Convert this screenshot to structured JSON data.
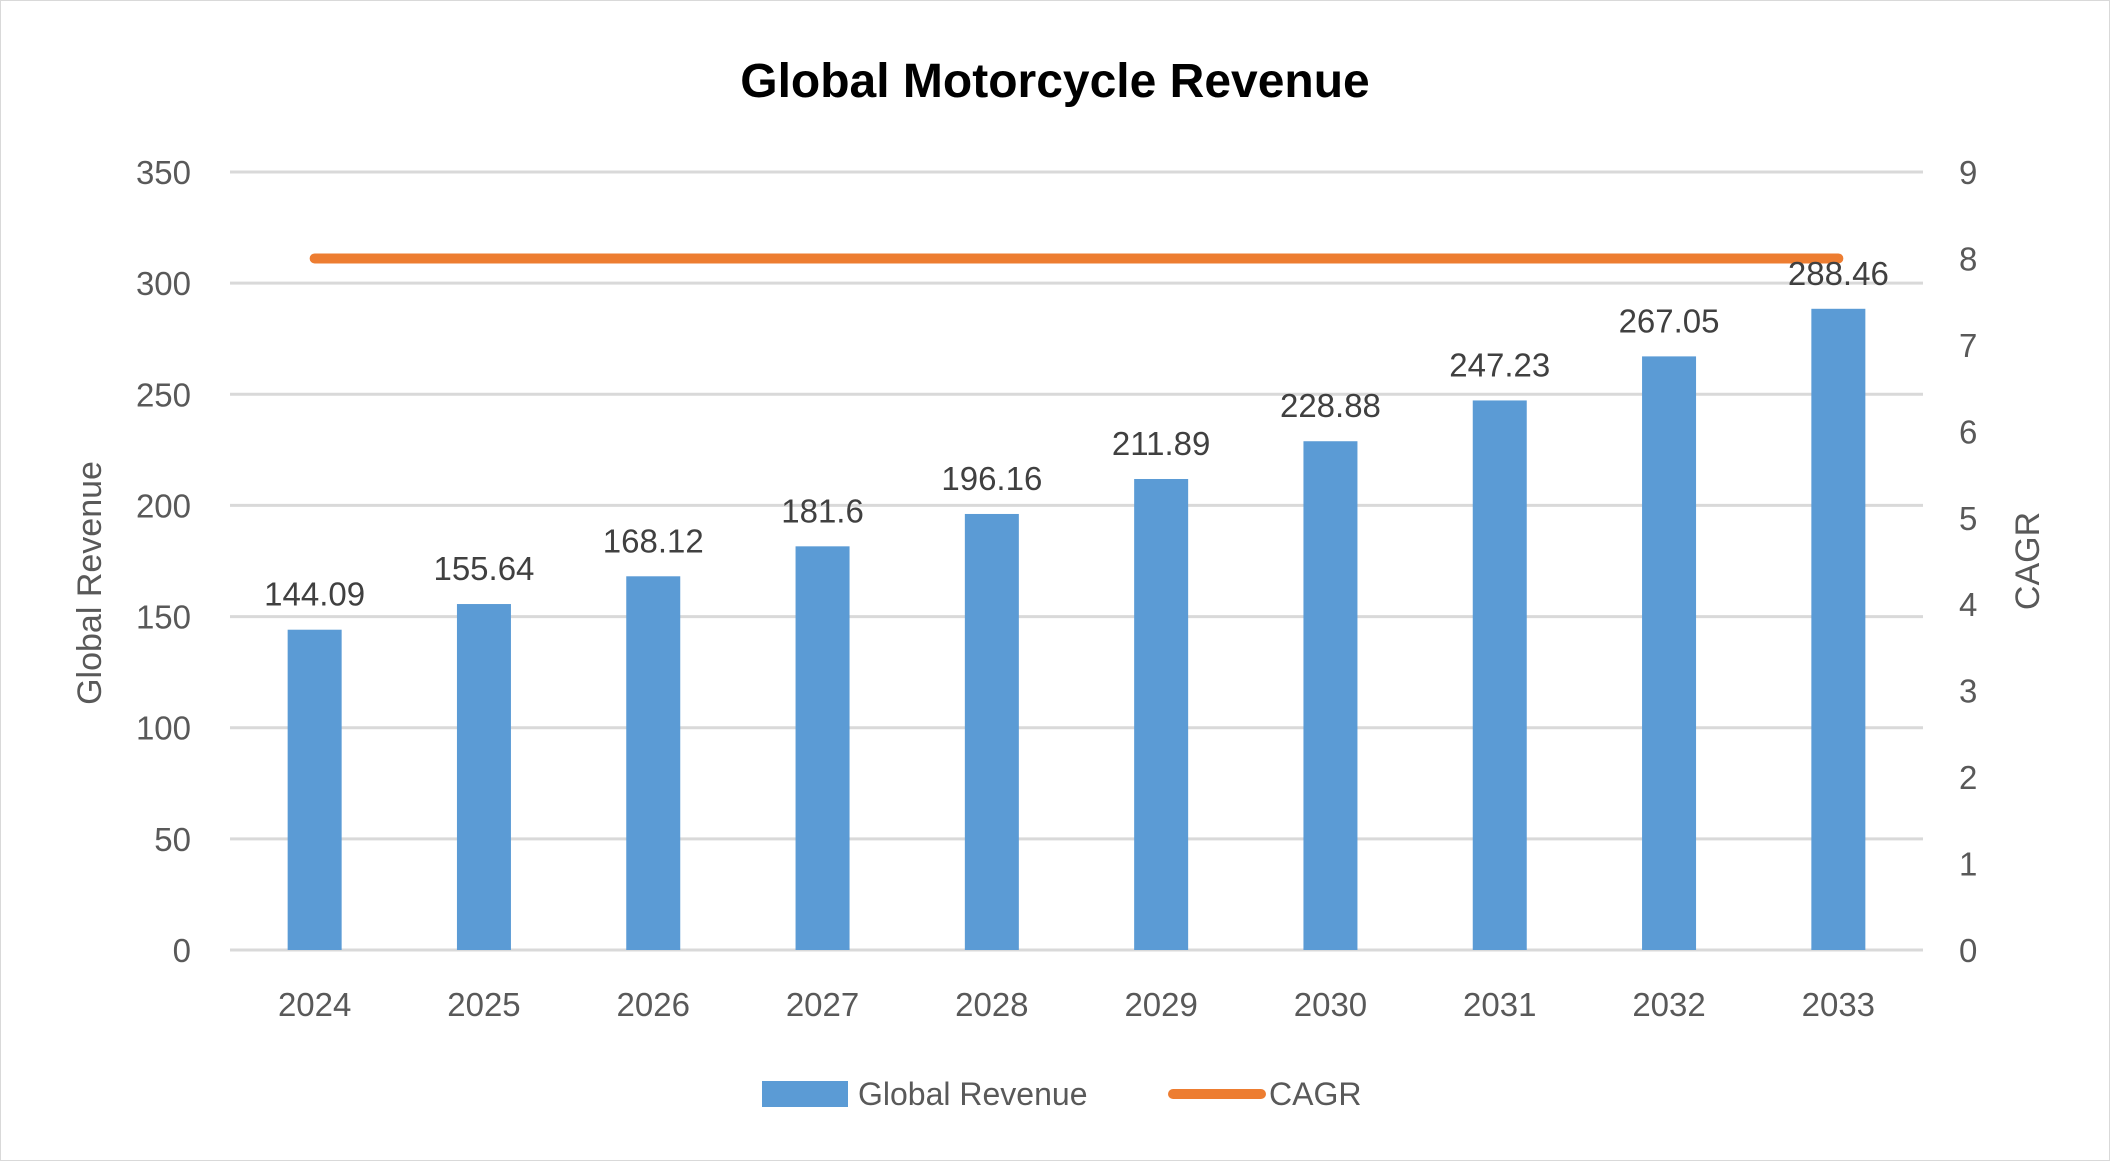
{
  "chart_data": {
    "type": "bar",
    "title": "Global Motorcycle Revenue",
    "categories": [
      "2024",
      "2025",
      "2026",
      "2027",
      "2028",
      "2029",
      "2030",
      "2031",
      "2032",
      "2033"
    ],
    "series": [
      {
        "name": "Global Revenue",
        "type": "bar",
        "axis": "left",
        "color": "#5b9bd5",
        "values": [
          144.09,
          155.64,
          168.12,
          181.6,
          196.16,
          211.89,
          228.88,
          247.23,
          267.05,
          288.46
        ],
        "labels": [
          "144.09",
          "155.64",
          "168.12",
          "181.6",
          "196.16",
          "211.89",
          "228.88",
          "247.23",
          "267.05",
          "288.46"
        ]
      },
      {
        "name": "CAGR",
        "type": "line",
        "axis": "right",
        "color": "#ed7d31",
        "values": [
          8,
          8,
          8,
          8,
          8,
          8,
          8,
          8,
          8,
          8
        ]
      }
    ],
    "ylabel": "Global Revenue",
    "y2label": "CAGR",
    "ylim": [
      0,
      350
    ],
    "y2lim": [
      0,
      9
    ],
    "yticks": [
      "0",
      "50",
      "100",
      "150",
      "200",
      "250",
      "300",
      "350"
    ],
    "y2ticks": [
      "0",
      "1",
      "2",
      "3",
      "4",
      "5",
      "6",
      "7",
      "8",
      "9"
    ],
    "grid": true,
    "legend": "bottom"
  }
}
